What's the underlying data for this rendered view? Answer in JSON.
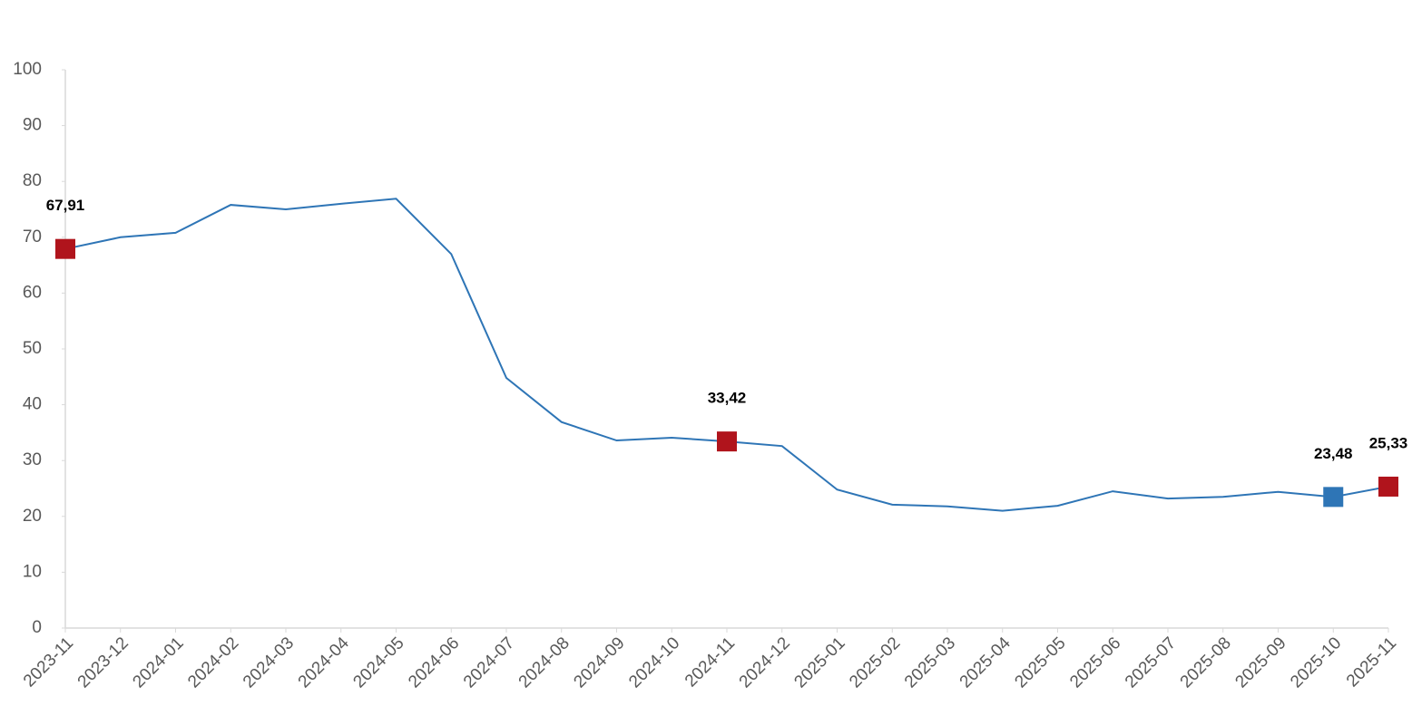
{
  "chart_data": {
    "type": "line",
    "categories": [
      "2023-11",
      "2023-12",
      "2024-01",
      "2024-02",
      "2024-03",
      "2024-04",
      "2024-05",
      "2024-06",
      "2024-07",
      "2024-08",
      "2024-09",
      "2024-10",
      "2024-11",
      "2024-12",
      "2025-01",
      "2025-02",
      "2025-03",
      "2025-04",
      "2025-05",
      "2025-06",
      "2025-07",
      "2025-08",
      "2025-09",
      "2025-10",
      "2025-11"
    ],
    "values": [
      67.91,
      70.0,
      70.8,
      75.8,
      75.0,
      76.0,
      76.9,
      67.0,
      44.8,
      36.9,
      33.6,
      34.1,
      33.42,
      32.6,
      24.8,
      22.1,
      21.8,
      21.0,
      21.9,
      24.5,
      23.2,
      23.5,
      24.4,
      23.48,
      25.33
    ],
    "value_labels": [
      "67,91",
      null,
      null,
      null,
      null,
      null,
      null,
      null,
      null,
      null,
      null,
      null,
      "33,42",
      null,
      null,
      null,
      null,
      null,
      null,
      null,
      null,
      null,
      null,
      "23,48",
      "25,33"
    ],
    "marker_colors": [
      "#b0141c",
      null,
      null,
      null,
      null,
      null,
      null,
      null,
      null,
      null,
      null,
      null,
      "#b0141c",
      null,
      null,
      null,
      null,
      null,
      null,
      null,
      null,
      null,
      null,
      "#2e75b6",
      "#b0141c"
    ],
    "color": "#2e75b6",
    "ylim": [
      0,
      100
    ],
    "yticks": [
      0,
      10,
      20,
      30,
      40,
      50,
      60,
      70,
      80,
      90,
      100
    ],
    "grid": false
  }
}
